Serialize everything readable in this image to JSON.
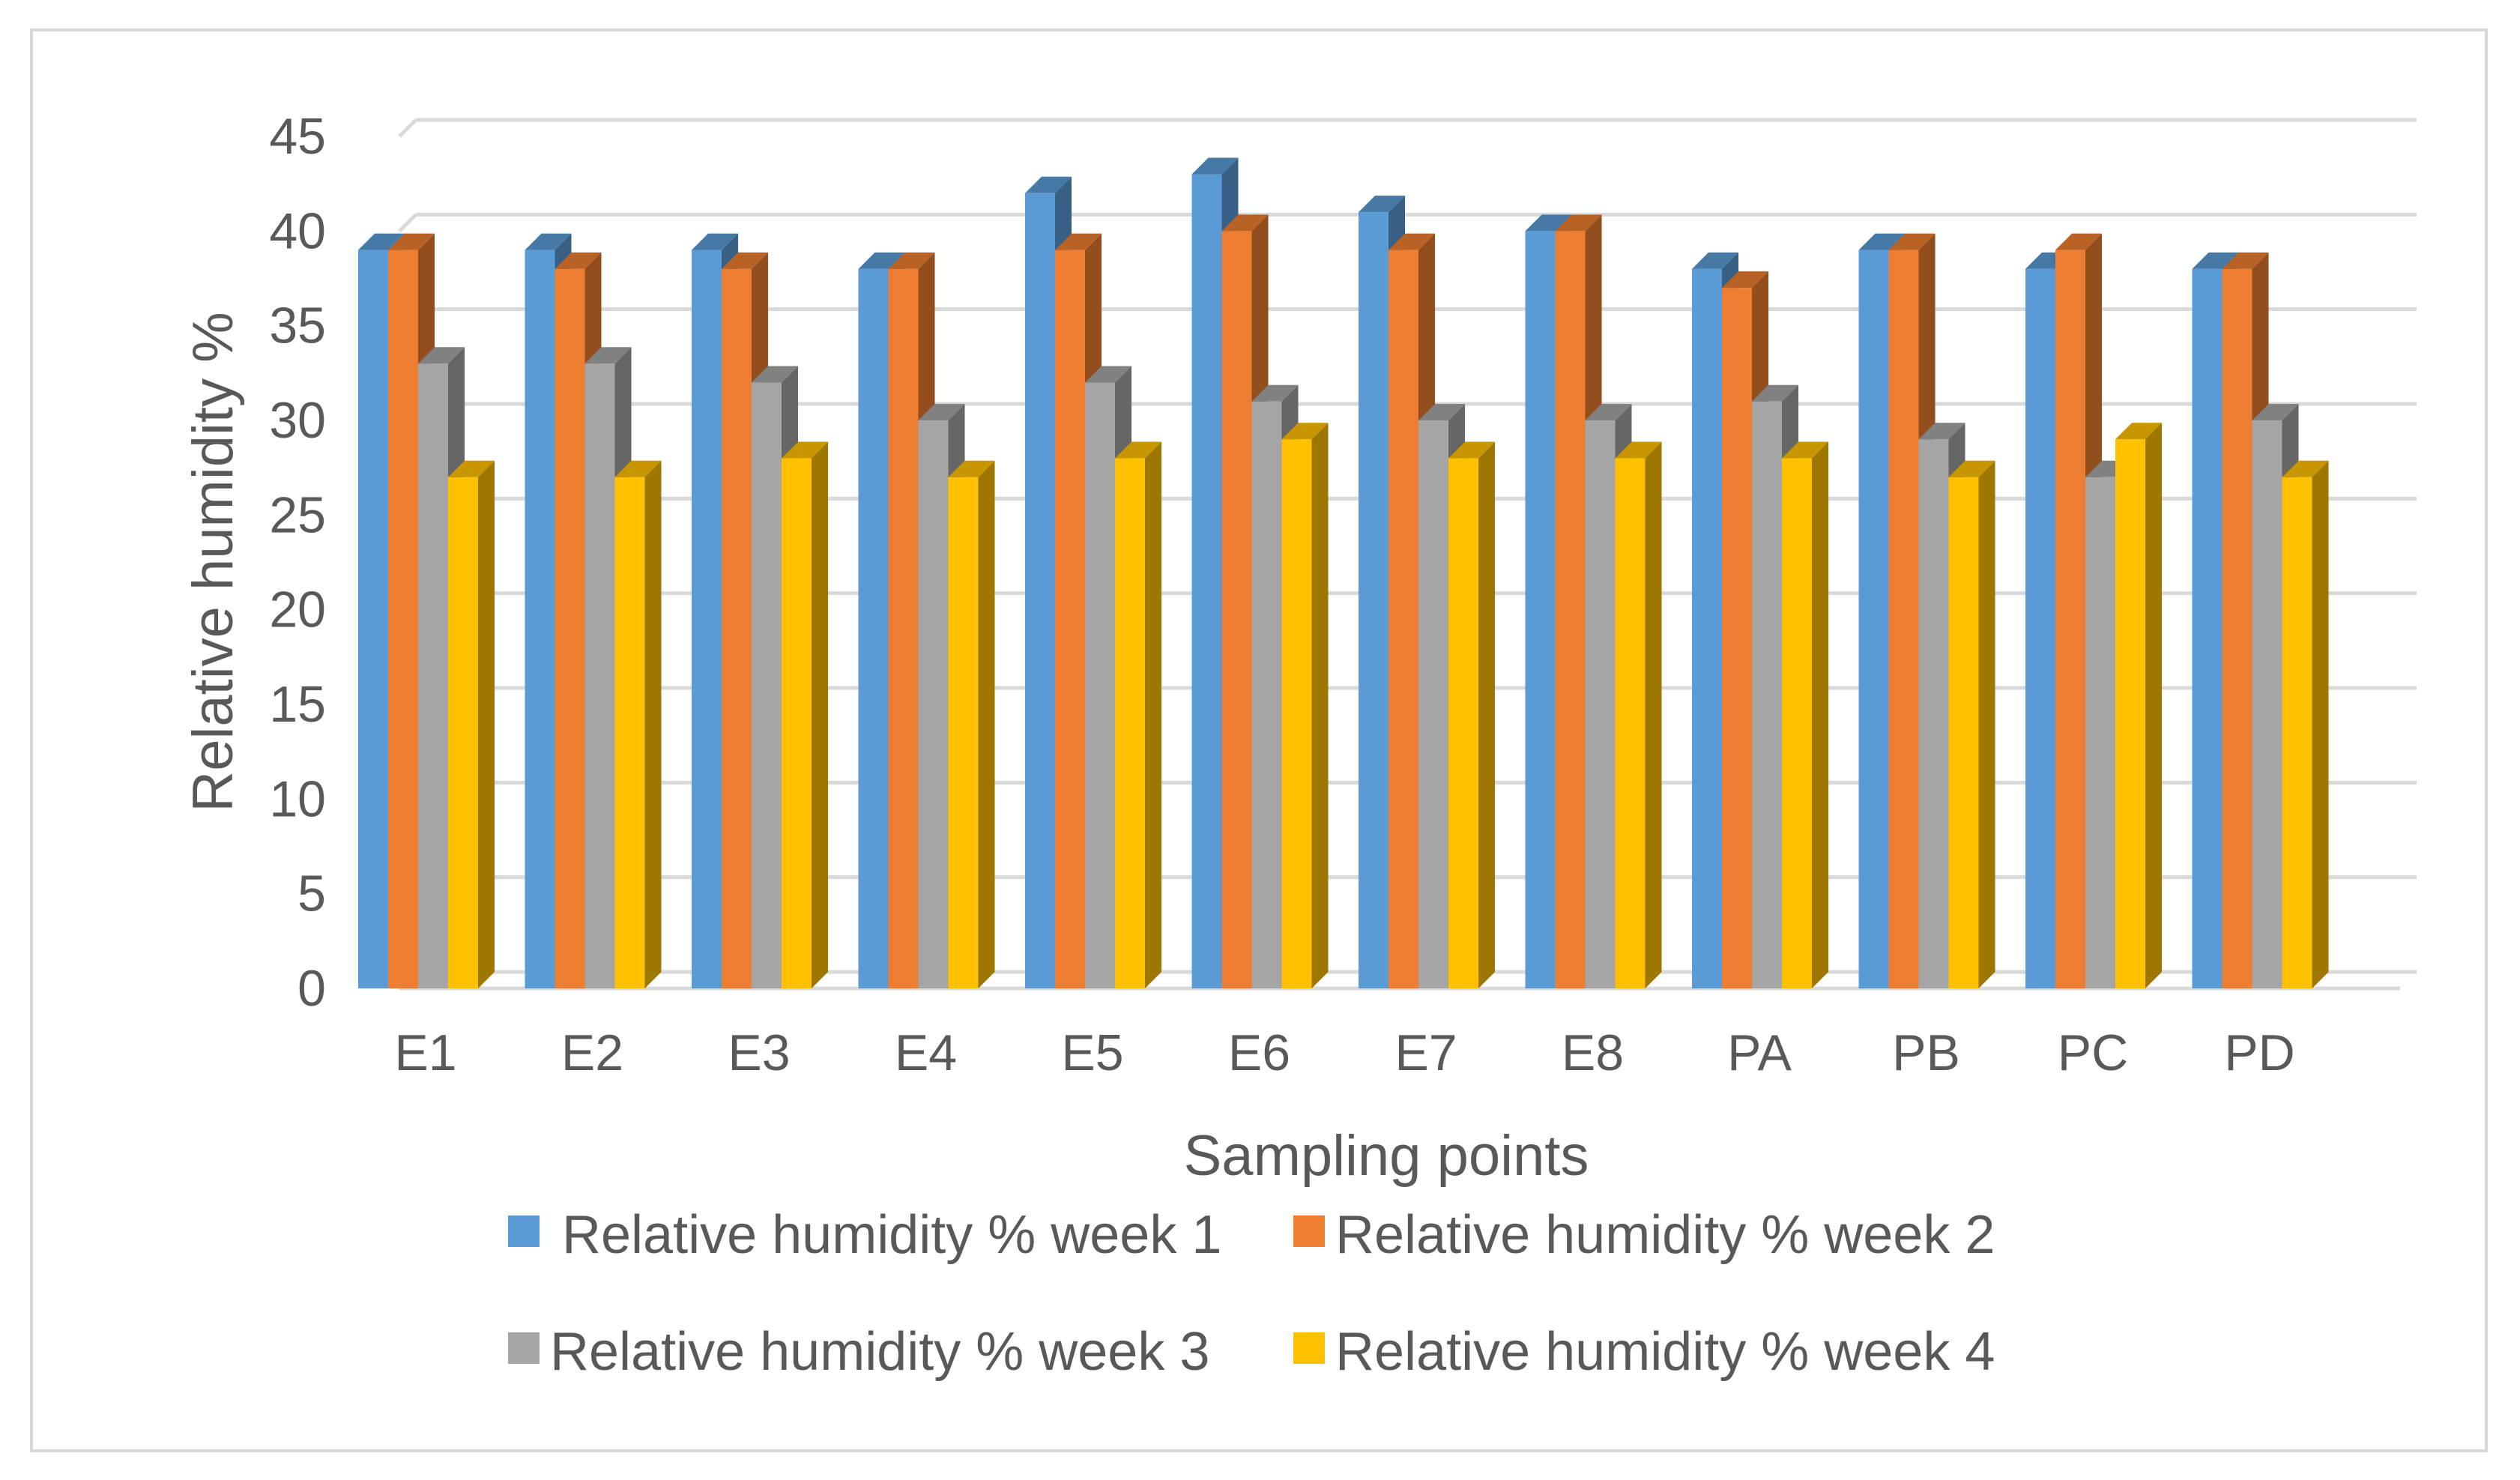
{
  "chart_data": {
    "type": "bar",
    "title": "",
    "xlabel": "Sampling points",
    "ylabel": "Relative humidity %",
    "ylim": [
      0,
      45
    ],
    "yticks": [
      "0",
      "5",
      "10",
      "15",
      "20",
      "25",
      "30",
      "35",
      "40",
      "45"
    ],
    "grid": true,
    "legend_position": "bottom",
    "categories": [
      "E1",
      "E2",
      "E3",
      "E4",
      "E5",
      "E6",
      "E7",
      "E8",
      "PA",
      "PB",
      "PC",
      "PD"
    ],
    "series": [
      {
        "name": "Relative humidity %  week 1",
        "color": "#5B9BD5",
        "values": [
          39,
          39,
          39,
          38,
          42,
          43,
          41,
          40,
          38,
          39,
          38,
          38
        ]
      },
      {
        "name": "Relative humidity %  week 2",
        "color": "#ED7D31",
        "values": [
          39,
          38,
          38,
          38,
          39,
          40,
          39,
          40,
          37,
          39,
          39,
          38
        ]
      },
      {
        "name": "Relative humidity %  week 3",
        "color": "#A5A5A5",
        "values": [
          33,
          33,
          32,
          30,
          32,
          31,
          30,
          30,
          31,
          29,
          27,
          30
        ]
      },
      {
        "name": "Relative humidity %  week 4",
        "color": "#FFC000",
        "values": [
          27,
          27,
          28,
          27,
          28,
          29,
          28,
          28,
          28,
          27,
          29,
          27
        ]
      }
    ],
    "colors": {
      "gridline": "#d9d9d9",
      "text": "#595959",
      "frame": "#d9d9d9"
    }
  }
}
